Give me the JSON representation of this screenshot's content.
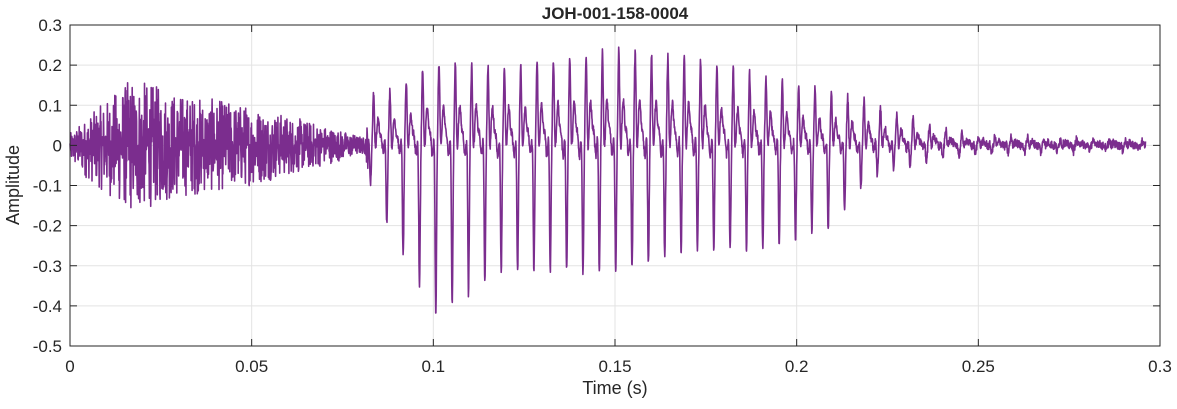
{
  "chart_data": {
    "type": "line",
    "title": "JOH-001-158-0004",
    "xlabel": "Time (s)",
    "ylabel": "Amplitude",
    "xlim": [
      0,
      0.3
    ],
    "ylim": [
      -0.5,
      0.3
    ],
    "xticks": [
      0,
      0.05,
      0.1,
      0.15,
      0.2,
      0.25,
      0.3
    ],
    "xtick_labels": [
      "0",
      "0.05",
      "0.1",
      "0.15",
      "0.2",
      "0.25",
      "0.3"
    ],
    "yticks": [
      -0.5,
      -0.4,
      -0.3,
      -0.2,
      -0.1,
      0,
      0.1,
      0.2,
      0.3
    ],
    "ytick_labels": [
      "-0.5",
      "-0.4",
      "-0.3",
      "-0.2",
      "-0.1",
      "0",
      "0.1",
      "0.2",
      "0.3"
    ],
    "grid": true,
    "line_color": "#7B2D8E",
    "series": [
      {
        "name": "waveform",
        "description_note": "speech waveform: noise-like onset then voiced periodic segment",
        "voicing_onset_s": 0.082,
        "pitch_period_s": 0.0045,
        "envelope": [
          {
            "t": 0.0,
            "upper": 0.03,
            "lower": -0.05
          },
          {
            "t": 0.017,
            "upper": 0.17,
            "lower": -0.17
          },
          {
            "t": 0.03,
            "upper": 0.13,
            "lower": -0.13
          },
          {
            "t": 0.05,
            "upper": 0.1,
            "lower": -0.1
          },
          {
            "t": 0.07,
            "upper": 0.05,
            "lower": -0.05
          },
          {
            "t": 0.081,
            "upper": 0.02,
            "lower": -0.02
          },
          {
            "t": 0.083,
            "upper": 0.12,
            "lower": -0.1
          },
          {
            "t": 0.09,
            "upper": 0.13,
            "lower": -0.24
          },
          {
            "t": 0.1,
            "upper": 0.19,
            "lower": -0.41
          },
          {
            "t": 0.12,
            "upper": 0.18,
            "lower": -0.3
          },
          {
            "t": 0.15,
            "upper": 0.22,
            "lower": -0.3
          },
          {
            "t": 0.17,
            "upper": 0.2,
            "lower": -0.25
          },
          {
            "t": 0.19,
            "upper": 0.16,
            "lower": -0.25
          },
          {
            "t": 0.21,
            "upper": 0.12,
            "lower": -0.2
          },
          {
            "t": 0.22,
            "upper": 0.1,
            "lower": -0.07
          },
          {
            "t": 0.235,
            "upper": 0.05,
            "lower": -0.04
          },
          {
            "t": 0.25,
            "upper": 0.02,
            "lower": -0.02
          },
          {
            "t": 0.296,
            "upper": 0.01,
            "lower": -0.01
          }
        ]
      }
    ]
  }
}
